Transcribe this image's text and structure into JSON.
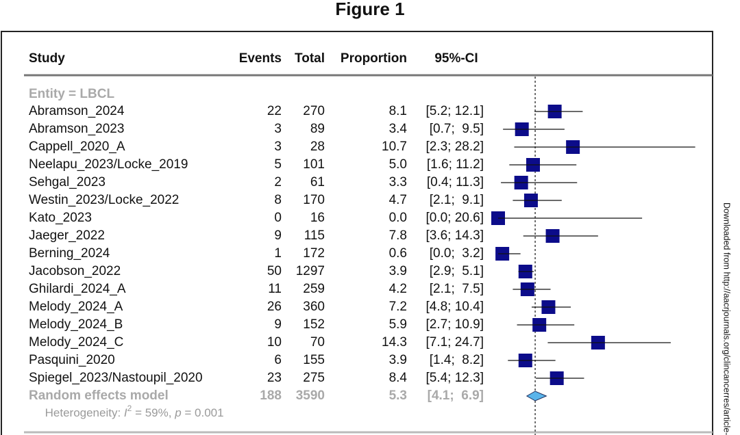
{
  "chart_data": {
    "type": "forest",
    "title": "Figure 1",
    "columns": [
      "Study",
      "Events",
      "Total",
      "Proportion",
      "95%-CI"
    ],
    "subgroup": "Entity = LBCL",
    "xlim": [
      0,
      30
    ],
    "square_color": "#0c0c8a",
    "diamond_color": "#5ab4ea",
    "studies": [
      {
        "name": "Abramson_2024",
        "events": 22,
        "total": 270,
        "proportion": 8.1,
        "proportion_label": "8.1",
        "ci_low": 5.2,
        "ci_high": 12.1,
        "ci_label": "[5.2; 12.1]"
      },
      {
        "name": "Abramson_2023",
        "events": 3,
        "total": 89,
        "proportion": 3.4,
        "proportion_label": "3.4",
        "ci_low": 0.7,
        "ci_high": 9.5,
        "ci_label": "[0.7;  9.5]"
      },
      {
        "name": "Cappell_2020_A",
        "events": 3,
        "total": 28,
        "proportion": 10.7,
        "proportion_label": "10.7",
        "ci_low": 2.3,
        "ci_high": 28.2,
        "ci_label": "[2.3; 28.2]"
      },
      {
        "name": "Neelapu_2023/Locke_2019",
        "events": 5,
        "total": 101,
        "proportion": 5.0,
        "proportion_label": "5.0",
        "ci_low": 1.6,
        "ci_high": 11.2,
        "ci_label": "[1.6; 11.2]"
      },
      {
        "name": "Sehgal_2023",
        "events": 2,
        "total": 61,
        "proportion": 3.3,
        "proportion_label": "3.3",
        "ci_low": 0.4,
        "ci_high": 11.3,
        "ci_label": "[0.4; 11.3]"
      },
      {
        "name": "Westin_2023/Locke_2022",
        "events": 8,
        "total": 170,
        "proportion": 4.7,
        "proportion_label": "4.7",
        "ci_low": 2.1,
        "ci_high": 9.1,
        "ci_label": "[2.1;  9.1]"
      },
      {
        "name": "Kato_2023",
        "events": 0,
        "total": 16,
        "proportion": 0.0,
        "proportion_label": "0.0",
        "ci_low": 0.0,
        "ci_high": 20.6,
        "ci_label": "[0.0; 20.6]"
      },
      {
        "name": "Jaeger_2022",
        "events": 9,
        "total": 115,
        "proportion": 7.8,
        "proportion_label": "7.8",
        "ci_low": 3.6,
        "ci_high": 14.3,
        "ci_label": "[3.6; 14.3]"
      },
      {
        "name": "Berning_2024",
        "events": 1,
        "total": 172,
        "proportion": 0.6,
        "proportion_label": "0.6",
        "ci_low": 0.0,
        "ci_high": 3.2,
        "ci_label": "[0.0;  3.2]"
      },
      {
        "name": "Jacobson_2022",
        "events": 50,
        "total": 1297,
        "proportion": 3.9,
        "proportion_label": "3.9",
        "ci_low": 2.9,
        "ci_high": 5.1,
        "ci_label": "[2.9;  5.1]"
      },
      {
        "name": "Ghilardi_2024_A",
        "events": 11,
        "total": 259,
        "proportion": 4.2,
        "proportion_label": "4.2",
        "ci_low": 2.1,
        "ci_high": 7.5,
        "ci_label": "[2.1;  7.5]"
      },
      {
        "name": "Melody_2024_A",
        "events": 26,
        "total": 360,
        "proportion": 7.2,
        "proportion_label": "7.2",
        "ci_low": 4.8,
        "ci_high": 10.4,
        "ci_label": "[4.8; 10.4]"
      },
      {
        "name": "Melody_2024_B",
        "events": 9,
        "total": 152,
        "proportion": 5.9,
        "proportion_label": "5.9",
        "ci_low": 2.7,
        "ci_high": 10.9,
        "ci_label": "[2.7; 10.9]"
      },
      {
        "name": "Melody_2024_C",
        "events": 10,
        "total": 70,
        "proportion": 14.3,
        "proportion_label": "14.3",
        "ci_low": 7.1,
        "ci_high": 24.7,
        "ci_label": "[7.1; 24.7]"
      },
      {
        "name": "Pasquini_2020",
        "events": 6,
        "total": 155,
        "proportion": 3.9,
        "proportion_label": "3.9",
        "ci_low": 1.4,
        "ci_high": 8.2,
        "ci_label": "[1.4;  8.2]"
      },
      {
        "name": "Spiegel_2023/Nastoupil_2020",
        "events": 23,
        "total": 275,
        "proportion": 8.4,
        "proportion_label": "8.4",
        "ci_low": 5.4,
        "ci_high": 12.3,
        "ci_label": "[5.4; 12.3]"
      }
    ],
    "pooled": {
      "name": "Random effects model",
      "events": 188,
      "total": 3590,
      "proportion": 5.3,
      "proportion_label": "5.3",
      "ci_low": 4.1,
      "ci_high": 6.9,
      "ci_label": "[4.1;  6.9]"
    },
    "heterogeneity": [
      "Heterogeneity: ",
      "I",
      "2",
      " = 59%, ",
      "p",
      " = 0.001"
    ],
    "watermark": "Downloaded from http://aacrjournals.org/clincancerres/article-"
  }
}
